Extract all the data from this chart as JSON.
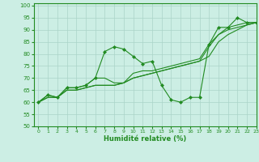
{
  "xlabel": "Humidité relative (%)",
  "xlim": [
    -0.5,
    23
  ],
  "ylim": [
    50,
    101
  ],
  "xticks": [
    0,
    1,
    2,
    3,
    4,
    5,
    6,
    7,
    8,
    9,
    10,
    11,
    12,
    13,
    14,
    15,
    16,
    17,
    18,
    19,
    20,
    21,
    22,
    23
  ],
  "yticks": [
    50,
    55,
    60,
    65,
    70,
    75,
    80,
    85,
    90,
    95,
    100
  ],
  "bg_color": "#cceee4",
  "grid_color": "#aad4c8",
  "line_color": "#228B22",
  "series": [
    [
      60,
      63,
      62,
      66,
      66,
      67,
      70,
      81,
      83,
      82,
      79,
      76,
      77,
      67,
      61,
      60,
      62,
      62,
      84,
      91,
      91,
      95,
      93,
      93
    ],
    [
      60,
      63,
      62,
      66,
      66,
      67,
      70,
      70,
      68,
      68,
      72,
      73,
      73,
      74,
      75,
      76,
      77,
      78,
      84,
      88,
      91,
      92,
      93,
      93
    ],
    [
      60,
      62,
      62,
      65,
      65,
      66,
      67,
      67,
      67,
      68,
      70,
      71,
      72,
      73,
      74,
      75,
      76,
      77,
      83,
      88,
      90,
      91,
      92,
      93
    ],
    [
      60,
      62,
      62,
      65,
      65,
      66,
      67,
      67,
      67,
      68,
      70,
      71,
      72,
      73,
      74,
      75,
      76,
      77,
      79,
      85,
      88,
      90,
      92,
      93
    ]
  ],
  "markers_series": 0
}
